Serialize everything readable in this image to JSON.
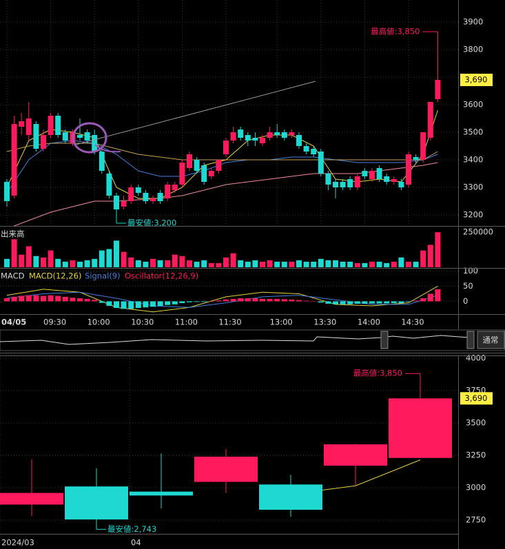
{
  "chart_data": [
    {
      "type": "candlestick",
      "categories": [
        "04/05",
        null,
        null,
        null,
        null,
        null,
        "09:30",
        null,
        null,
        null,
        null,
        null,
        "10:00",
        null,
        null,
        null,
        null,
        null,
        "10:30",
        null,
        null,
        null,
        null,
        null,
        "11:00",
        null,
        null,
        null,
        null,
        null,
        "11:30",
        null,
        null,
        null,
        null,
        null,
        null,
        "13:00",
        null,
        null,
        null,
        null,
        null,
        "13:30",
        null,
        null,
        null,
        null,
        null,
        "14:00",
        null,
        null,
        null,
        null,
        null,
        "14:30",
        null,
        null,
        null,
        null
      ],
      "open": [
        3320,
        3270,
        3520,
        3490,
        3530,
        3440,
        3490,
        3560,
        3500,
        3460,
        3490,
        3500,
        3490,
        3430,
        3350,
        3270,
        3230,
        3250,
        3300,
        3280,
        3250,
        3280,
        3260,
        3290,
        3310,
        3370,
        3400,
        3380,
        3340,
        3360,
        3420,
        3470,
        3510,
        3490,
        3480,
        3460,
        3480,
        3500,
        3500,
        3490,
        3490,
        3450,
        3440,
        3430,
        3350,
        3320,
        3320,
        3330,
        3300,
        3360,
        3330,
        3370,
        3340,
        3320,
        3320,
        3310,
        3410,
        3400,
        3480,
        3620
      ],
      "high": [
        3330,
        3560,
        3570,
        3610,
        3540,
        3510,
        3570,
        3570,
        3510,
        3510,
        3550,
        3510,
        3510,
        3440,
        3360,
        3280,
        3270,
        3310,
        3310,
        3290,
        3270,
        3290,
        3320,
        3320,
        3400,
        3430,
        3410,
        3390,
        3370,
        3400,
        3480,
        3520,
        3520,
        3500,
        3500,
        3490,
        3520,
        3530,
        3510,
        3510,
        3500,
        3460,
        3450,
        3440,
        3360,
        3330,
        3330,
        3340,
        3350,
        3370,
        3370,
        3380,
        3350,
        3340,
        3330,
        3430,
        3420,
        3500,
        3610,
        3850
      ],
      "low": [
        3230,
        3260,
        3490,
        3470,
        3430,
        3430,
        3480,
        3480,
        3460,
        3450,
        3470,
        3460,
        3420,
        3350,
        3260,
        3200,
        3220,
        3240,
        3270,
        3240,
        3240,
        3240,
        3250,
        3280,
        3300,
        3360,
        3350,
        3310,
        3330,
        3350,
        3410,
        3460,
        3470,
        3450,
        3450,
        3450,
        3470,
        3480,
        3470,
        3480,
        3440,
        3420,
        3410,
        3340,
        3290,
        3260,
        3290,
        3290,
        3290,
        3330,
        3320,
        3320,
        3310,
        3310,
        3290,
        3300,
        3390,
        3390,
        3470,
        3610
      ],
      "close": [
        3250,
        3530,
        3540,
        3550,
        3440,
        3490,
        3560,
        3490,
        3470,
        3500,
        3480,
        3470,
        3430,
        3360,
        3270,
        3220,
        3250,
        3300,
        3280,
        3250,
        3260,
        3250,
        3310,
        3310,
        3390,
        3420,
        3360,
        3320,
        3360,
        3400,
        3470,
        3500,
        3480,
        3470,
        3470,
        3480,
        3500,
        3490,
        3480,
        3500,
        3450,
        3430,
        3420,
        3350,
        3310,
        3300,
        3300,
        3300,
        3340,
        3340,
        3360,
        3330,
        3320,
        3330,
        3300,
        3420,
        3400,
        3500,
        3610,
        3690
      ],
      "up_color": "#ff1a5e",
      "down_color": "#1ed8d2",
      "ylim": [
        3160,
        3980
      ],
      "yticks": [
        3200,
        3300,
        3400,
        3500,
        3600,
        3700,
        3800,
        3900
      ],
      "grid": true,
      "high_label": "最高値:3,850",
      "low_label": "最安値:3,200",
      "last_label": "3,690",
      "lines": [
        {
          "color": "#e8d33a",
          "x": [
            0,
            3,
            6,
            9,
            12,
            15,
            18,
            21,
            24,
            27,
            30,
            33,
            36,
            39,
            42,
            45,
            48,
            51,
            54,
            57,
            59
          ],
          "values": [
            3300,
            3470,
            3510,
            3500,
            3480,
            3300,
            3260,
            3260,
            3300,
            3380,
            3400,
            3470,
            3490,
            3490,
            3450,
            3330,
            3320,
            3330,
            3320,
            3420,
            3580
          ]
        },
        {
          "color": "#3f7fe0",
          "x": [
            0,
            3,
            6,
            9,
            12,
            15,
            18,
            21,
            24,
            27,
            30,
            33,
            36,
            39,
            42,
            45,
            48,
            51,
            54,
            57,
            59
          ],
          "values": [
            3280,
            3400,
            3460,
            3470,
            3460,
            3420,
            3360,
            3340,
            3340,
            3360,
            3390,
            3400,
            3400,
            3410,
            3410,
            3400,
            3390,
            3390,
            3390,
            3400,
            3420
          ]
        },
        {
          "color": "#c9a347",
          "x": [
            0,
            3,
            6,
            9,
            12,
            15,
            18,
            21,
            24,
            27,
            30,
            33,
            36,
            39,
            42,
            45,
            48,
            51,
            54,
            57,
            59
          ],
          "values": [
            3430,
            3450,
            3460,
            3460,
            3460,
            3440,
            3420,
            3410,
            3400,
            3400,
            3400,
            3400,
            3400,
            3400,
            3400,
            3400,
            3400,
            3400,
            3400,
            3400,
            3430
          ]
        },
        {
          "color": "#f08aa0",
          "x": [
            0,
            3,
            6,
            9,
            12,
            15,
            18,
            21,
            24,
            27,
            30,
            33,
            36,
            39,
            42,
            45,
            48,
            51,
            54,
            57,
            59
          ],
          "values": [
            3150,
            3180,
            3210,
            3230,
            3250,
            3250,
            3255,
            3260,
            3270,
            3290,
            3310,
            3320,
            3330,
            3340,
            3350,
            3350,
            3350,
            3360,
            3370,
            3380,
            3390
          ]
        }
      ]
    },
    {
      "type": "bar",
      "title": "出来高",
      "values": [
        60000,
        200000,
        90000,
        150000,
        80000,
        70000,
        120000,
        60000,
        40000,
        50000,
        40000,
        50000,
        60000,
        120000,
        130000,
        190000,
        110000,
        70000,
        50000,
        40000,
        60000,
        50000,
        50000,
        90000,
        80000,
        50000,
        40000,
        50000,
        30000,
        30000,
        70000,
        100000,
        50000,
        40000,
        50000,
        40000,
        50000,
        40000,
        40000,
        40000,
        50000,
        40000,
        40000,
        60000,
        50000,
        50000,
        40000,
        40000,
        30000,
        30000,
        40000,
        40000,
        30000,
        40000,
        70000,
        40000,
        40000,
        120000,
        160000,
        250000
      ],
      "ylim": [
        0,
        285000
      ],
      "yticks": [
        250000
      ]
    },
    {
      "type": "macd",
      "title": "MACD",
      "ylim": [
        -40,
        108
      ],
      "yticks": [
        0,
        50,
        100
      ],
      "series": [
        {
          "name": "MACD(12,26)",
          "color": "#e8d33a",
          "x": [
            0,
            5,
            10,
            15,
            20,
            25,
            30,
            35,
            40,
            45,
            50,
            55,
            59
          ],
          "values": [
            20,
            40,
            30,
            -20,
            -35,
            -20,
            15,
            30,
            25,
            -10,
            -15,
            -5,
            50
          ]
        },
        {
          "name": "Signal(9)",
          "color": "#3f7fe0",
          "x": [
            0,
            5,
            10,
            15,
            20,
            25,
            30,
            35,
            40,
            45,
            50,
            55,
            59
          ],
          "values": [
            10,
            25,
            30,
            10,
            -15,
            -20,
            -5,
            15,
            20,
            5,
            -10,
            -10,
            20
          ]
        },
        {
          "name": "Oscillator(12,26,9)",
          "color": "#ff1a5e",
          "values": [
            10,
            15,
            18,
            20,
            20,
            18,
            20,
            18,
            15,
            12,
            10,
            8,
            5,
            -5,
            -15,
            -22,
            -25,
            -25,
            -22,
            -20,
            -18,
            -15,
            -12,
            -10,
            -6,
            -3,
            -2,
            -2,
            0,
            3,
            6,
            8,
            10,
            10,
            10,
            8,
            8,
            8,
            7,
            6,
            4,
            2,
            0,
            -4,
            -8,
            -10,
            -10,
            -10,
            -8,
            -8,
            -7,
            -7,
            -7,
            -6,
            -6,
            -2,
            2,
            10,
            25,
            40
          ]
        }
      ]
    },
    {
      "type": "candlestick",
      "categories": [
        "2024/03",
        null,
        "04",
        null,
        null,
        null,
        null
      ],
      "open": [
        2870,
        3010,
        2970,
        3045,
        3025,
        3170,
        3230
      ],
      "high": [
        3220,
        3150,
        3265,
        3300,
        3100,
        3340,
        3850
      ],
      "low": [
        2780,
        2743,
        2840,
        2960,
        2775,
        3015,
        3230
      ],
      "close": [
        2960,
        2755,
        2940,
        3240,
        2830,
        3335,
        3690
      ],
      "up_color": "#ff1a5e",
      "down_color": "#1ed8d2",
      "ylim": [
        2644,
        4016
      ],
      "yticks": [
        2750,
        3000,
        3250,
        3500,
        3750,
        4000
      ],
      "grid": true,
      "high_label": "最高値:3,850",
      "low_label": "最安値:2,743",
      "last_label": "3,690",
      "lines": [
        {
          "color": "#e8d33a",
          "x": [
            4,
            5,
            6
          ],
          "values": [
            2950,
            3015,
            3215
          ]
        }
      ]
    }
  ],
  "ui": {
    "mode_button": "通常"
  }
}
